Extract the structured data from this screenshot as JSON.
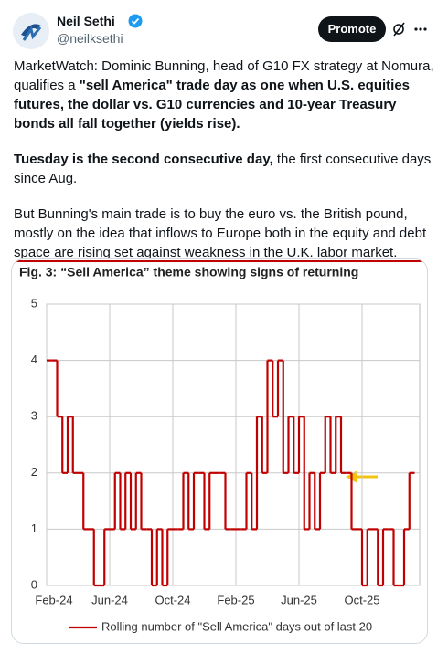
{
  "tweet": {
    "author": "Neil Sethi",
    "handle": "@neilksethi",
    "button": "Promote",
    "paragraphs": [
      [
        {
          "text": "MarketWatch: Dominic Bunning, head of G10 FX strategy at Nomura, qualifies a "
        },
        {
          "text": "\"sell America\" trade day as one when U.S. equities futures, the dollar vs. G10 currencies and 10-year Treasury bonds all fall together (yields rise).",
          "bold": true
        }
      ],
      [
        {
          "text": "Tuesday is the second consecutive day,",
          "bold": true
        },
        {
          "text": " the first consecutive days since Aug."
        }
      ],
      [
        {
          "text": "But Bunning's main trade is to buy the euro vs. the British pound, mostly on the idea that inflows to Europe both in the equity and debt space are rising set against weakness in the U.K. labor market."
        }
      ]
    ]
  },
  "chart_data": {
    "type": "line",
    "title": "Fig. 3: “Sell America” theme showing signs of returning",
    "categories": [
      "Feb-24",
      null,
      null,
      null,
      null,
      null,
      null,
      null,
      null,
      null,
      null,
      null,
      "Jun-24",
      null,
      null,
      null,
      null,
      null,
      null,
      null,
      null,
      null,
      null,
      null,
      "Oct-24",
      null,
      null,
      null,
      null,
      null,
      null,
      null,
      null,
      null,
      null,
      null,
      "Feb-25",
      null,
      null,
      null,
      null,
      null,
      null,
      null,
      null,
      null,
      null,
      null,
      "Jun-25",
      null,
      null,
      null,
      null,
      null,
      null,
      null,
      null,
      null,
      null,
      null,
      "Oct-25",
      null,
      null,
      null,
      null,
      null,
      null,
      null,
      null,
      null
    ],
    "series": [
      {
        "name": "Rolling number of \"Sell America\" days out of last 20",
        "color": "#c00000",
        "values": [
          4,
          4,
          3,
          2,
          3,
          2,
          2,
          1,
          1,
          0,
          0,
          1,
          1,
          2,
          1,
          2,
          1,
          2,
          1,
          1,
          0,
          1,
          0,
          1,
          1,
          1,
          2,
          1,
          2,
          2,
          1,
          2,
          2,
          2,
          1,
          1,
          1,
          1,
          2,
          1,
          3,
          2,
          4,
          3,
          4,
          2,
          3,
          2,
          3,
          1,
          2,
          1,
          2,
          3,
          2,
          3,
          2,
          2,
          1,
          1,
          0,
          1,
          1,
          0,
          1,
          1,
          0,
          0,
          1,
          2
        ]
      }
    ],
    "ylim": [
      0,
      5
    ],
    "yticks": [
      0,
      1,
      2,
      3,
      4,
      5
    ],
    "grid": true
  }
}
